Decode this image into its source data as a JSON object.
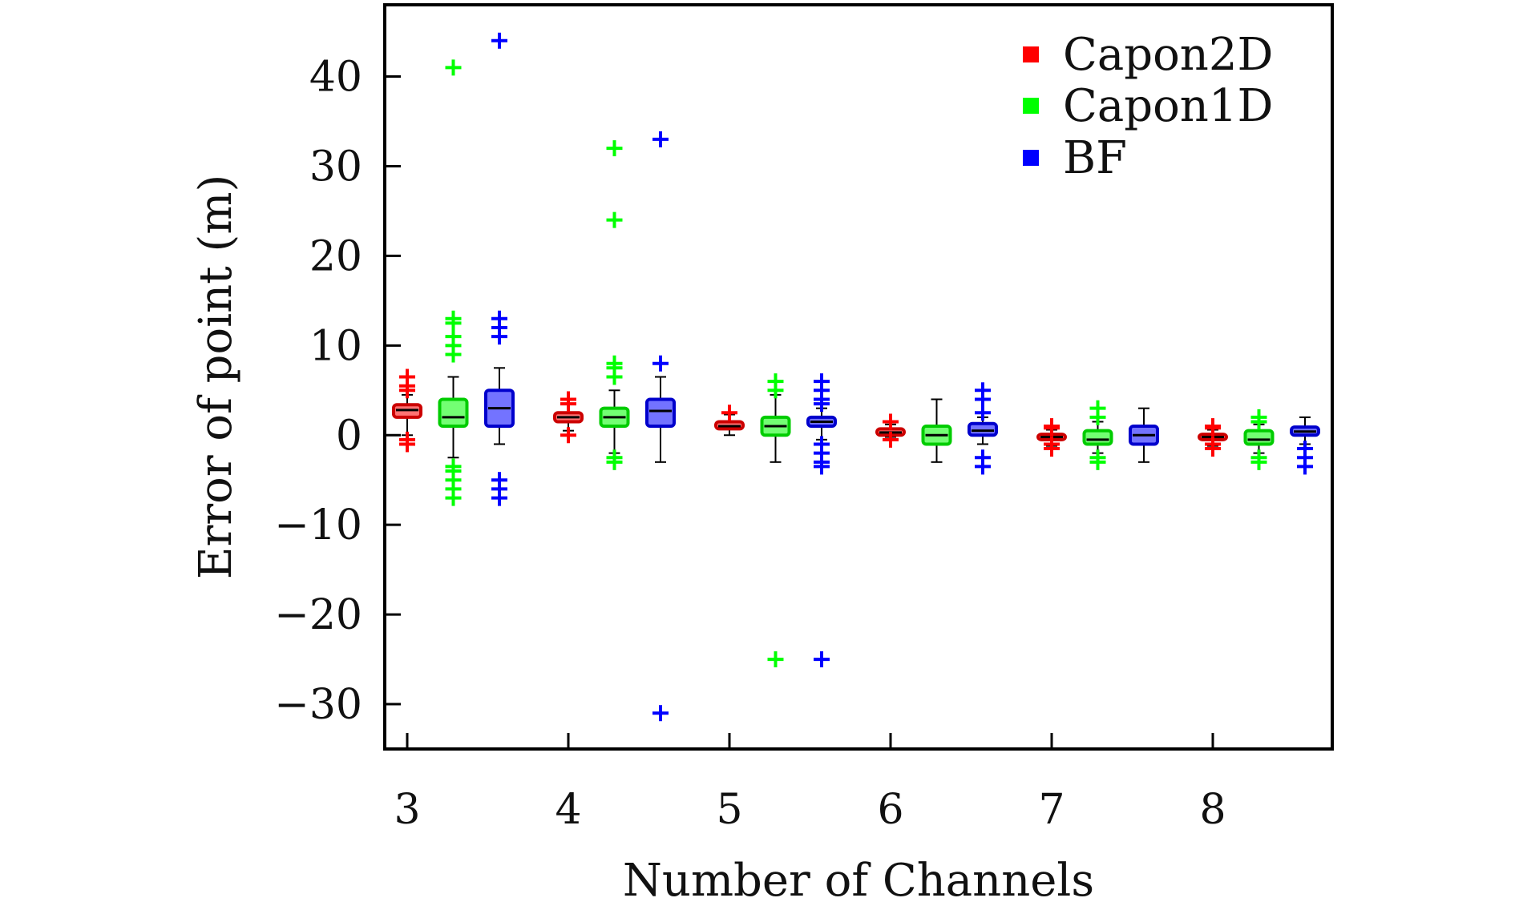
{
  "chart_data": {
    "type": "box",
    "xlabel": "Number of Channels",
    "ylabel": "Error of point (m)",
    "x_ticks": [
      "3",
      "4",
      "5",
      "6",
      "7",
      "8"
    ],
    "y_ticks": [
      "40",
      "30",
      "20",
      "10",
      "0",
      "−10",
      "−20",
      "−30"
    ],
    "ylim": [
      -35,
      48
    ],
    "legend_position": "top-right",
    "grid": false,
    "series": [
      {
        "name": "Capon2D",
        "color": "#ff0000",
        "boxes": [
          {
            "channels": 3,
            "whisker_low": 0,
            "q1": 2,
            "median": 2.8,
            "q3": 3.4,
            "whisker_high": 4.5,
            "outliers": [
              -1,
              -0.5,
              5,
              5.5,
              6.5
            ]
          },
          {
            "channels": 4,
            "whisker_low": 0.5,
            "q1": 1.5,
            "median": 2,
            "q3": 2.5,
            "whisker_high": 3.5,
            "outliers": [
              0,
              3.5,
              4
            ]
          },
          {
            "channels": 5,
            "whisker_low": 0,
            "q1": 0.7,
            "median": 1,
            "q3": 1.5,
            "whisker_high": 2.3,
            "outliers": [
              2.5
            ]
          },
          {
            "channels": 6,
            "whisker_low": -0.2,
            "q1": 0,
            "median": 0.3,
            "q3": 0.7,
            "whisker_high": 1.2,
            "outliers": [
              1.5,
              -0.5
            ]
          },
          {
            "channels": 7,
            "whisker_low": -1.2,
            "q1": -0.5,
            "median": -0.2,
            "q3": 0.1,
            "whisker_high": 0.6,
            "outliers": [
              -1.5,
              -1,
              0.8,
              1
            ]
          },
          {
            "channels": 8,
            "whisker_low": -1.2,
            "q1": -0.5,
            "median": -0.2,
            "q3": 0.1,
            "whisker_high": 0.6,
            "outliers": [
              -1.5,
              -1,
              0.8,
              1
            ]
          }
        ]
      },
      {
        "name": "Capon1D",
        "color": "#00ff00",
        "boxes": [
          {
            "channels": 3,
            "whisker_low": -2.5,
            "q1": 1,
            "median": 2,
            "q3": 4,
            "whisker_high": 6.5,
            "outliers": [
              -7,
              -6,
              -5,
              -4,
              -3.5,
              9,
              10,
              11,
              12.5,
              13,
              41
            ]
          },
          {
            "channels": 4,
            "whisker_low": -2,
            "q1": 1,
            "median": 2,
            "q3": 3,
            "whisker_high": 5,
            "outliers": [
              -3,
              -2.5,
              6.5,
              7.5,
              8,
              24,
              32
            ]
          },
          {
            "channels": 5,
            "whisker_low": -3,
            "q1": 0,
            "median": 1,
            "q3": 2,
            "whisker_high": 4.5,
            "outliers": [
              5,
              6,
              -25
            ]
          },
          {
            "channels": 6,
            "whisker_low": -3,
            "q1": -1,
            "median": 0,
            "q3": 1,
            "whisker_high": 4,
            "outliers": []
          },
          {
            "channels": 7,
            "whisker_low": -2,
            "q1": -1,
            "median": -0.5,
            "q3": 0.5,
            "whisker_high": 1.5,
            "outliers": [
              -3,
              -2.5,
              2,
              3
            ]
          },
          {
            "channels": 8,
            "whisker_low": -2,
            "q1": -1,
            "median": -0.5,
            "q3": 0.5,
            "whisker_high": 1.2,
            "outliers": [
              -3,
              -2.5,
              1.5,
              2
            ]
          }
        ]
      },
      {
        "name": "BF",
        "color": "#0000ff",
        "boxes": [
          {
            "channels": 3,
            "whisker_low": -1,
            "q1": 1,
            "median": 3,
            "q3": 5,
            "whisker_high": 7.5,
            "outliers": [
              -7,
              -6,
              -5,
              11,
              12,
              13,
              44
            ]
          },
          {
            "channels": 4,
            "whisker_low": -3,
            "q1": 1,
            "median": 2.7,
            "q3": 4,
            "whisker_high": 6.5,
            "outliers": [
              8,
              33,
              -31
            ]
          },
          {
            "channels": 5,
            "whisker_low": -0.5,
            "q1": 1,
            "median": 1.5,
            "q3": 2,
            "whisker_high": 3,
            "outliers": [
              -3.5,
              -3,
              -2,
              -1,
              3.5,
              4,
              5,
              6,
              -25
            ]
          },
          {
            "channels": 6,
            "whisker_low": -1,
            "q1": 0,
            "median": 0.5,
            "q3": 1.3,
            "whisker_high": 2,
            "outliers": [
              -3.5,
              -2.5,
              2.5,
              4,
              5
            ]
          },
          {
            "channels": 7,
            "whisker_low": -3,
            "q1": -1,
            "median": 0,
            "q3": 1,
            "whisker_high": 3,
            "outliers": []
          },
          {
            "channels": 8,
            "whisker_low": -1,
            "q1": 0,
            "median": 0.4,
            "q3": 0.9,
            "whisker_high": 2,
            "outliers": [
              -3.5,
              -2.5,
              -1.5
            ]
          }
        ]
      }
    ]
  }
}
